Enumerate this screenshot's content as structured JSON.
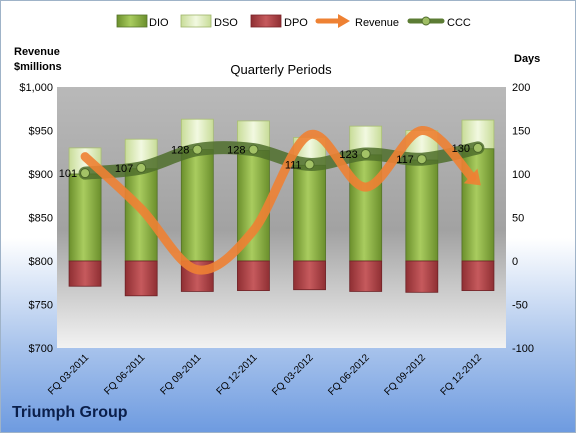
{
  "company": "Triumph Group",
  "chart_data": {
    "type": "bar",
    "title": "Quarterly Periods",
    "left_axis_label": [
      "Revenue",
      "$millions"
    ],
    "right_axis_label": "Days",
    "categories": [
      "FQ 03-2011",
      "FQ 06-2011",
      "FQ 09-2011",
      "FQ 12-2011",
      "FQ 03-2012",
      "FQ 06-2012",
      "FQ 09-2012",
      "FQ 12-2012"
    ],
    "left_ticks": [
      "$1,000",
      "$950",
      "$900",
      "$850",
      "$800",
      "$750",
      "$700"
    ],
    "right_ticks": [
      "200",
      "150",
      "100",
      "50",
      "0",
      "-50",
      "-100"
    ],
    "ylim_left": [
      700,
      1000
    ],
    "ylim_right": [
      -100,
      200
    ],
    "legend_placement": "top",
    "grid": false,
    "series": [
      {
        "name": "DIO",
        "type": "stacked-bar",
        "axis": "right",
        "color": "#7fa33a",
        "values": [
          100,
          106,
          128,
          127,
          110,
          122,
          116,
          129
        ]
      },
      {
        "name": "DSO",
        "type": "stacked-bar",
        "axis": "right",
        "color": "#dcebb4",
        "values": [
          30,
          34,
          35,
          34,
          32,
          33,
          34,
          33
        ]
      },
      {
        "name": "DPO",
        "type": "bar-negative",
        "axis": "right",
        "color": "#b3464a",
        "values": [
          -29,
          -40,
          -35,
          -34,
          -33,
          -35,
          -36,
          -34
        ]
      },
      {
        "name": "Revenue",
        "type": "line",
        "axis": "left",
        "color": "#ee8133",
        "values": [
          920,
          860,
          790,
          835,
          945,
          885,
          950,
          890
        ]
      },
      {
        "name": "CCC",
        "type": "line",
        "axis": "right",
        "color": "#5c7c34",
        "values": [
          101,
          107,
          128,
          128,
          111,
          123,
          117,
          130
        ],
        "labels": [
          "101",
          "107",
          "128",
          "128",
          "111",
          "123",
          "117",
          "130"
        ]
      }
    ]
  }
}
